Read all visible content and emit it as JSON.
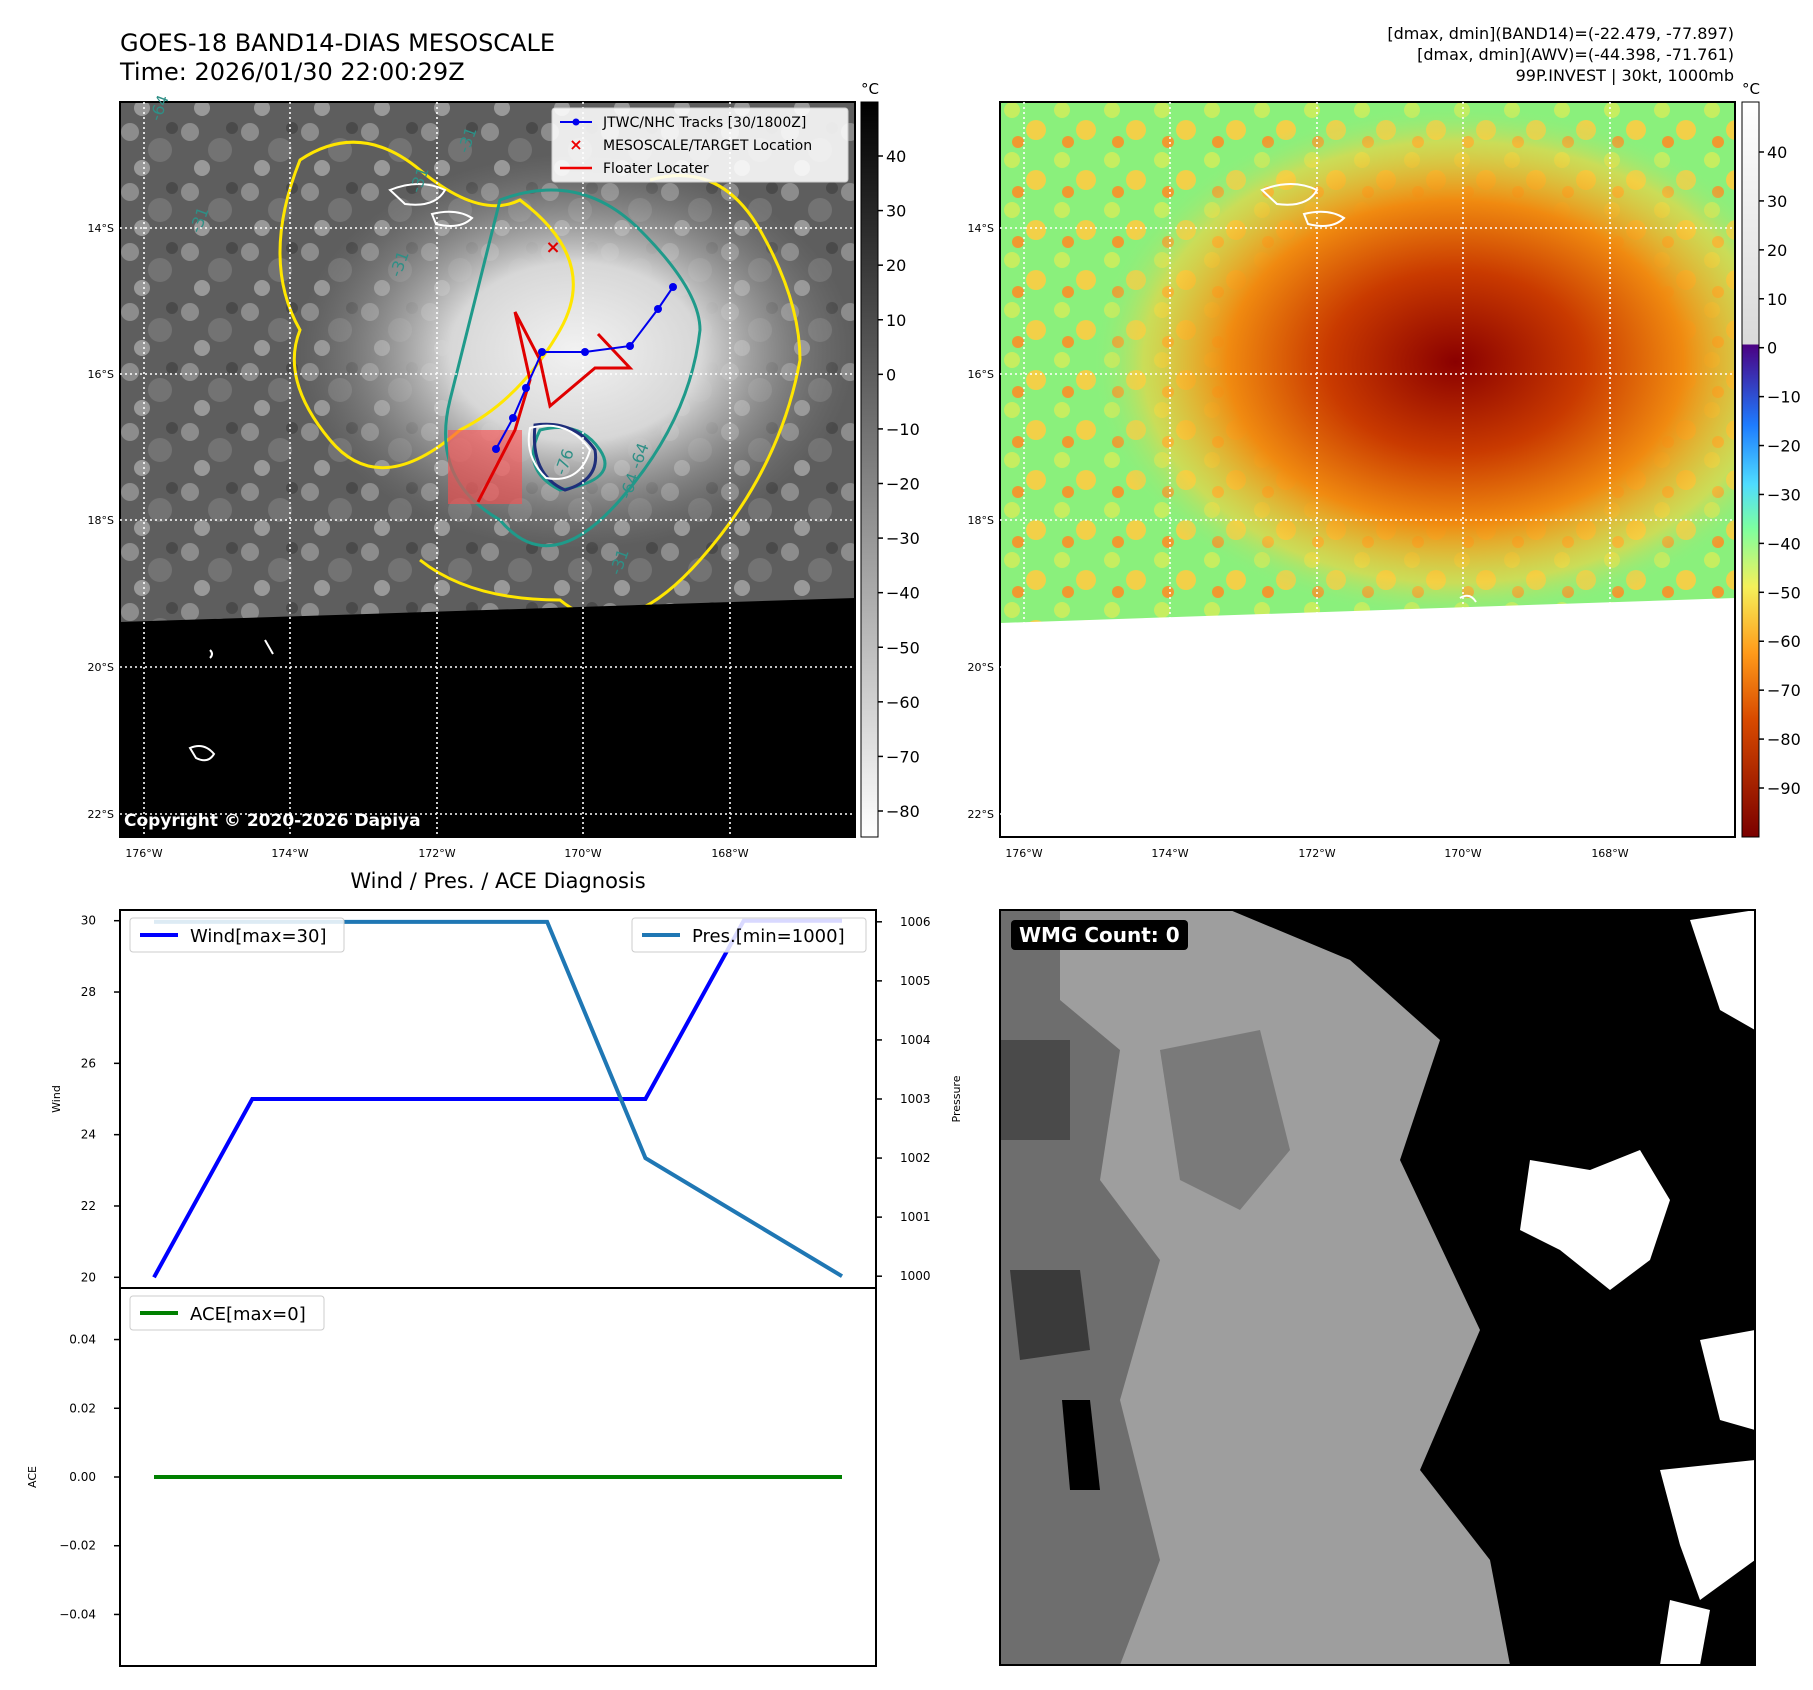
{
  "header": {
    "title": "GOES-18 BAND14-DIAS MESOSCALE",
    "time": "Time: 2026/01/30 22:00:29Z",
    "stats": [
      "[dmax, dmin](BAND14)=(-22.479, -77.897)",
      "[dmax, dmin](AWV)=(-44.398, -71.761)",
      "99P.INVEST | 30kt, 1000mb"
    ]
  },
  "maps": {
    "lat_ticks": [
      "14°S",
      "16°S",
      "18°S",
      "20°S",
      "22°S"
    ],
    "lon_ticks": [
      "176°W",
      "174°W",
      "172°W",
      "170°W",
      "168°W"
    ],
    "copyright": "Copyright © 2020-2026 Dapiya",
    "legend": [
      {
        "label": "JTWC/NHC Tracks [30/1800Z]",
        "color": "#0000ee",
        "icon": "line-dot"
      },
      {
        "label": "MESOSCALE/TARGET Location",
        "color": "#ee0000",
        "icon": "x-marker"
      },
      {
        "label": "Floater Locater",
        "color": "#ee0000",
        "icon": "line"
      }
    ],
    "contour_labels": [
      "-64",
      "-31",
      "-31",
      "-31",
      "-31",
      "-64",
      "-76",
      "-64",
      "-31"
    ],
    "cbar1": {
      "unit": "°C",
      "ticks": [
        "40",
        "30",
        "20",
        "10",
        "0",
        "−10",
        "−20",
        "−30",
        "−40",
        "−50",
        "−60",
        "−70",
        "−80"
      ]
    },
    "cbar2": {
      "unit": "°C",
      "ticks": [
        "40",
        "30",
        "20",
        "10",
        "0",
        "−10",
        "−20",
        "−30",
        "−40",
        "−50",
        "−60",
        "−70",
        "−80",
        "−90"
      ]
    }
  },
  "diagnosis": {
    "title": "Wind / Pres. / ACE Diagnosis"
  },
  "wmg": {
    "label": "WMG Count: 0"
  },
  "chart_data": [
    {
      "type": "line",
      "title": "Wind / Pres. / ACE Diagnosis",
      "x": [
        0,
        1,
        2,
        3,
        4,
        5,
        6,
        7
      ],
      "series": [
        {
          "name": "Wind[max=30]",
          "axis": "Wind",
          "color": "#0000ff",
          "values": [
            20,
            25,
            25,
            25,
            25,
            25,
            30,
            30
          ]
        },
        {
          "name": "Pres.[min=1000]",
          "axis": "Pressure",
          "color": "#1f77b4",
          "values": [
            1006,
            1006,
            1006,
            1006,
            1006,
            1002,
            1001,
            1000
          ]
        }
      ],
      "ylabel": "Wind",
      "ylim": [
        19.7,
        30.3
      ],
      "yticks": [
        "30",
        "28",
        "26",
        "24",
        "22",
        "20"
      ],
      "y2label": "Pressure",
      "y2lim": [
        999.8,
        1006.2
      ],
      "y2ticks": [
        "1006",
        "1005",
        "1004",
        "1003",
        "1002",
        "1001",
        "1000"
      ]
    },
    {
      "type": "line",
      "x": [
        0,
        1,
        2,
        3,
        4,
        5,
        6,
        7
      ],
      "series": [
        {
          "name": "ACE[max=0]",
          "color": "#008000",
          "values": [
            0,
            0,
            0,
            0,
            0,
            0,
            0,
            0
          ]
        }
      ],
      "ylabel": "ACE",
      "ylim": [
        -0.055,
        0.055
      ],
      "yticks": [
        "0.04",
        "0.02",
        "0.00",
        "−0.02",
        "−0.04"
      ]
    }
  ]
}
